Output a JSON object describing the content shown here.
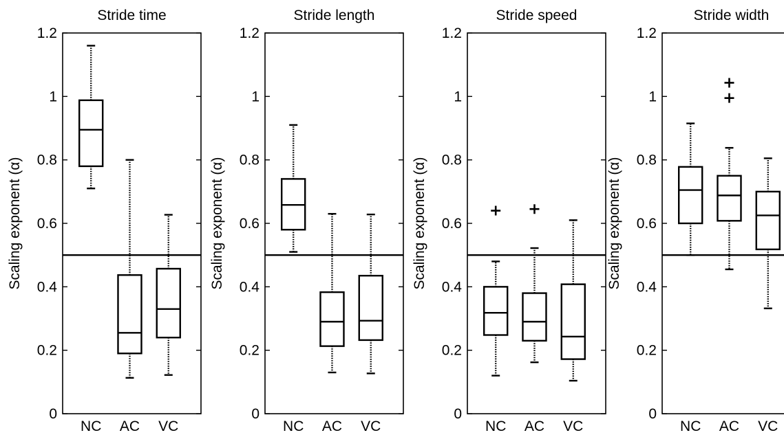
{
  "chart_data": [
    {
      "type": "box",
      "title": "Stride time",
      "ylabel": "Scaling exponent (α)",
      "ylim": [
        0,
        1.2
      ],
      "yticks": [
        "0",
        "0.2",
        "0.4",
        "0.6",
        "0.8",
        "1",
        "1.2"
      ],
      "reference_line": 0.5,
      "categories": [
        "NC",
        "AC",
        "VC"
      ],
      "boxes": [
        {
          "category": "NC",
          "min": 0.71,
          "q1": 0.78,
          "median": 0.895,
          "q3": 0.988,
          "max": 1.16,
          "outliers": []
        },
        {
          "category": "AC",
          "min": 0.113,
          "q1": 0.19,
          "median": 0.255,
          "q3": 0.437,
          "max": 0.8,
          "outliers": []
        },
        {
          "category": "VC",
          "min": 0.122,
          "q1": 0.24,
          "median": 0.33,
          "q3": 0.457,
          "max": 0.627,
          "outliers": []
        }
      ]
    },
    {
      "type": "box",
      "title": "Stride length",
      "ylabel": "Scaling exponent (α)",
      "ylim": [
        0,
        1.2
      ],
      "yticks": [
        "0",
        "0.2",
        "0.4",
        "0.6",
        "0.8",
        "1",
        "1.2"
      ],
      "reference_line": 0.5,
      "categories": [
        "NC",
        "AC",
        "VC"
      ],
      "boxes": [
        {
          "category": "NC",
          "min": 0.51,
          "q1": 0.58,
          "median": 0.658,
          "q3": 0.74,
          "max": 0.91,
          "outliers": []
        },
        {
          "category": "AC",
          "min": 0.13,
          "q1": 0.213,
          "median": 0.29,
          "q3": 0.383,
          "max": 0.63,
          "outliers": []
        },
        {
          "category": "VC",
          "min": 0.127,
          "q1": 0.232,
          "median": 0.293,
          "q3": 0.435,
          "max": 0.628,
          "outliers": []
        }
      ]
    },
    {
      "type": "box",
      "title": "Stride speed",
      "ylabel": "Scaling exponent (α)",
      "ylim": [
        0,
        1.2
      ],
      "yticks": [
        "0",
        "0.2",
        "0.4",
        "0.6",
        "0.8",
        "1",
        "1.2"
      ],
      "reference_line": 0.5,
      "categories": [
        "NC",
        "AC",
        "VC"
      ],
      "boxes": [
        {
          "category": "NC",
          "min": 0.12,
          "q1": 0.248,
          "median": 0.318,
          "q3": 0.4,
          "max": 0.48,
          "outliers": [
            0.64
          ]
        },
        {
          "category": "AC",
          "min": 0.162,
          "q1": 0.23,
          "median": 0.29,
          "q3": 0.38,
          "max": 0.522,
          "outliers": [
            0.645
          ]
        },
        {
          "category": "VC",
          "min": 0.104,
          "q1": 0.172,
          "median": 0.243,
          "q3": 0.408,
          "max": 0.61,
          "outliers": []
        }
      ]
    },
    {
      "type": "box",
      "title": "Stride width",
      "ylabel": "Scaling exponent (α)",
      "ylim": [
        0,
        1.2
      ],
      "yticks": [
        "0",
        "0.2",
        "0.4",
        "0.6",
        "0.8",
        "1",
        "1.2"
      ],
      "reference_line": 0.5,
      "categories": [
        "NC",
        "AC",
        "VC"
      ],
      "boxes": [
        {
          "category": "NC",
          "min": 0.5,
          "q1": 0.6,
          "median": 0.705,
          "q3": 0.778,
          "max": 0.915,
          "outliers": []
        },
        {
          "category": "AC",
          "min": 0.455,
          "q1": 0.608,
          "median": 0.688,
          "q3": 0.75,
          "max": 0.838,
          "outliers": [
            0.995,
            1.043
          ]
        },
        {
          "category": "VC",
          "min": 0.332,
          "q1": 0.518,
          "median": 0.625,
          "q3": 0.7,
          "max": 0.805,
          "outliers": []
        }
      ]
    }
  ]
}
